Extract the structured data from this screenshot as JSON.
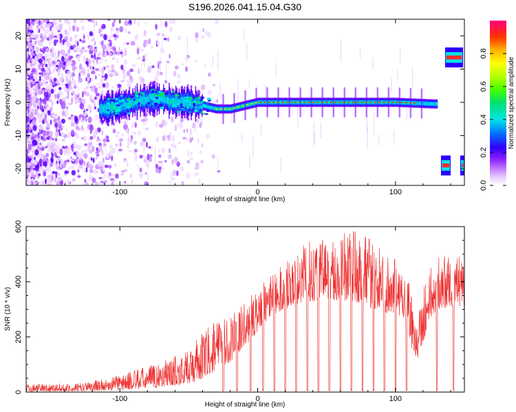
{
  "title": "S196.2026.041.15.04.G30",
  "chart_data": [
    {
      "type": "heatmap",
      "xlabel": "Height of straight line (km)",
      "ylabel": "Frequency (Hz)",
      "xlim": [
        -168,
        150
      ],
      "ylim": [
        -25,
        25
      ],
      "xticks": [
        -100,
        0,
        100
      ],
      "yticks": [
        -20,
        -10,
        0,
        10,
        20
      ],
      "colorbar": {
        "label": "Normalized spectral amplitude",
        "range": [
          0,
          1
        ],
        "ticks": [
          "0.0",
          "0.2",
          "0.4",
          "0.6",
          "0.8"
        ],
        "tick_values": [
          0.0,
          0.2,
          0.4,
          0.6,
          0.8
        ],
        "colors": [
          "#ffffff",
          "#d9a8ff",
          "#b355ff",
          "#7a00ff",
          "#2a00ff",
          "#0066ff",
          "#00e5e5",
          "#00e070",
          "#44ff00",
          "#b5ff00",
          "#ffff00",
          "#ffb400",
          "#ff5000",
          "#ff1a1a",
          "#ff0077"
        ]
      },
      "ridge": {
        "x": [
          -112,
          -100,
          -90,
          -80,
          -70,
          -60,
          -50,
          -40,
          -30,
          -20,
          -10,
          0,
          10,
          20,
          40,
          60,
          80,
          100,
          128
        ],
        "freq": [
          -2,
          -1,
          0,
          1,
          1,
          0,
          0,
          -1,
          -2,
          -2,
          -1,
          0,
          0,
          0,
          0,
          0,
          0,
          0,
          -0.5
        ]
      },
      "side_features": [
        {
          "x": [
            133,
            140
          ],
          "freq": -19
        },
        {
          "x": [
            136,
            149
          ],
          "freq": 13.5
        },
        {
          "x": [
            147,
            150
          ],
          "freq": -19
        }
      ]
    },
    {
      "type": "line",
      "xlabel": "Height of straight line (km)",
      "ylabel": "SNR (10 * v/v)",
      "xlim": [
        -168,
        150
      ],
      "ylim": [
        0,
        600
      ],
      "xticks": [
        -100,
        0,
        100
      ],
      "yticks": [
        0,
        200,
        400,
        600
      ],
      "color": "#ee3333",
      "envelope": {
        "x": [
          -168,
          -130,
          -110,
          -90,
          -70,
          -50,
          -40,
          -30,
          -20,
          -10,
          0,
          10,
          20,
          30,
          40,
          50,
          60,
          70,
          80,
          90,
          100,
          108,
          112,
          116,
          120,
          125,
          130,
          140,
          150
        ],
        "lo": [
          3,
          3,
          5,
          10,
          18,
          30,
          45,
          80,
          110,
          160,
          220,
          280,
          300,
          320,
          330,
          340,
          330,
          330,
          310,
          290,
          280,
          270,
          150,
          120,
          180,
          260,
          300,
          310,
          310
        ],
        "hi": [
          30,
          32,
          50,
          80,
          110,
          150,
          220,
          260,
          280,
          320,
          380,
          430,
          470,
          520,
          560,
          580,
          570,
          590,
          560,
          520,
          480,
          460,
          380,
          300,
          380,
          460,
          500,
          500,
          490
        ]
      },
      "dropouts_x": [
        -25,
        -15,
        -5,
        4,
        12,
        20,
        28,
        36,
        44,
        52,
        60,
        68,
        76,
        84,
        92,
        100,
        108,
        130,
        142
      ]
    }
  ]
}
